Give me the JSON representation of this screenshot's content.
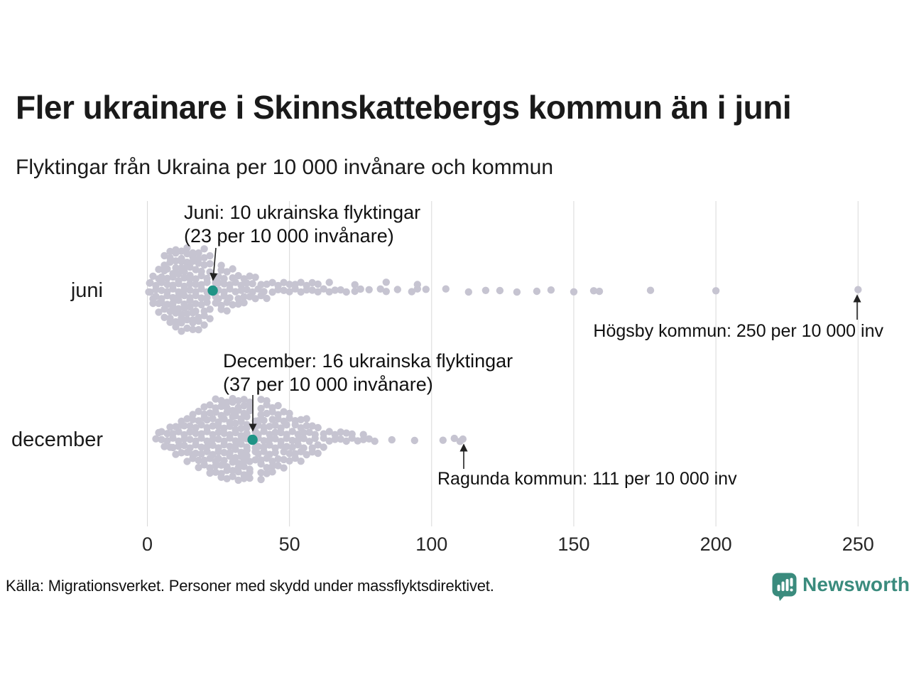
{
  "chart_data": {
    "type": "scatter",
    "variant": "beeswarm",
    "title": "Fler ukrainare i Skinnskattebergs kommun än i juni",
    "subtitle": "Flyktingar från Ukraina per 10 000 invånare och kommun",
    "source": "Källa: Migrationsverket. Personer med skydd under massflyktsdirektivet.",
    "xlabel": "",
    "xlim": [
      0,
      260
    ],
    "x_ticks": [
      0,
      50,
      100,
      150,
      200,
      250
    ],
    "grid": true,
    "legend": "none",
    "colors": {
      "dot": "#c6c4d1",
      "highlight": "#1f9486",
      "gridline": "#d8d8d8",
      "arrow": "#222222"
    },
    "rows": [
      {
        "label": "juni",
        "highlight_value": 23,
        "callout_line1": "Juni: 10 ukrainska flyktingar",
        "callout_line2": "(23 per 10 000 invånare)",
        "outlier_label": "Högsby kommun: 250 per 10 000 inv",
        "outlier_value": 250,
        "value_counts": [
          [
            0.5,
            1
          ],
          [
            0.8,
            1
          ],
          [
            1,
            2
          ],
          [
            2,
            3
          ],
          [
            3,
            3
          ],
          [
            4,
            4
          ],
          [
            5,
            5
          ],
          [
            6,
            5
          ],
          [
            7,
            6
          ],
          [
            8,
            6
          ],
          [
            9,
            7
          ],
          [
            10,
            7
          ],
          [
            11,
            7
          ],
          [
            12,
            8
          ],
          [
            13,
            7
          ],
          [
            14,
            7
          ],
          [
            15,
            8
          ],
          [
            16,
            7
          ],
          [
            17,
            7
          ],
          [
            18,
            6
          ],
          [
            19,
            6
          ],
          [
            20,
            6
          ],
          [
            21,
            5
          ],
          [
            22,
            5
          ],
          [
            24,
            5
          ],
          [
            25,
            4
          ],
          [
            26,
            4
          ],
          [
            27,
            4
          ],
          [
            28,
            3
          ],
          [
            29,
            3
          ],
          [
            30,
            3
          ],
          [
            31,
            2
          ],
          [
            32,
            3
          ],
          [
            33,
            2
          ],
          [
            34,
            3
          ],
          [
            35,
            2
          ],
          [
            36,
            2
          ],
          [
            37,
            2
          ],
          [
            38,
            2
          ],
          [
            39,
            1
          ],
          [
            40,
            2
          ],
          [
            41,
            1
          ],
          [
            42,
            2
          ],
          [
            44,
            2
          ],
          [
            46,
            2
          ],
          [
            48,
            2
          ],
          [
            50,
            2
          ],
          [
            52,
            2
          ],
          [
            54,
            2
          ],
          [
            56,
            2
          ],
          [
            58,
            2
          ],
          [
            60,
            2
          ],
          [
            62,
            1
          ],
          [
            64,
            2
          ],
          [
            66,
            1
          ],
          [
            68,
            1
          ],
          [
            70,
            1
          ],
          [
            73,
            2
          ],
          [
            75,
            1
          ],
          [
            78,
            1
          ],
          [
            82,
            1
          ],
          [
            84,
            2
          ],
          [
            88,
            1
          ],
          [
            93,
            1
          ],
          [
            95,
            2
          ],
          [
            98,
            1
          ],
          [
            105,
            1
          ],
          [
            113,
            1
          ],
          [
            119,
            1
          ],
          [
            124,
            1
          ],
          [
            130,
            1
          ],
          [
            137,
            1
          ],
          [
            142,
            1
          ],
          [
            150,
            1
          ],
          [
            157,
            1
          ],
          [
            159,
            1
          ],
          [
            177,
            1
          ],
          [
            200,
            1
          ],
          [
            250,
            1
          ]
        ]
      },
      {
        "label": "december",
        "highlight_value": 37,
        "callout_line1": "December: 16 ukrainska flyktingar",
        "callout_line2": "(37 per 10 000 invånare)",
        "outlier_label": "Ragunda kommun: 111 per 10 000 inv",
        "outlier_value": 111,
        "value_counts": [
          [
            3,
            1
          ],
          [
            4,
            1
          ],
          [
            5,
            2
          ],
          [
            6,
            1
          ],
          [
            7,
            2
          ],
          [
            8,
            2
          ],
          [
            9,
            3
          ],
          [
            10,
            2
          ],
          [
            11,
            3
          ],
          [
            12,
            3
          ],
          [
            13,
            4
          ],
          [
            14,
            3
          ],
          [
            15,
            4
          ],
          [
            16,
            4
          ],
          [
            17,
            5
          ],
          [
            18,
            4
          ],
          [
            19,
            5
          ],
          [
            20,
            5
          ],
          [
            21,
            6
          ],
          [
            22,
            5
          ],
          [
            23,
            6
          ],
          [
            24,
            6
          ],
          [
            25,
            7
          ],
          [
            26,
            6
          ],
          [
            27,
            7
          ],
          [
            28,
            6
          ],
          [
            29,
            7
          ],
          [
            30,
            7
          ],
          [
            31,
            8
          ],
          [
            32,
            7
          ],
          [
            33,
            8
          ],
          [
            34,
            7
          ],
          [
            35,
            8
          ],
          [
            36,
            7
          ],
          [
            38,
            7
          ],
          [
            39,
            6
          ],
          [
            40,
            7
          ],
          [
            41,
            6
          ],
          [
            42,
            6
          ],
          [
            43,
            5
          ],
          [
            44,
            6
          ],
          [
            45,
            5
          ],
          [
            46,
            5
          ],
          [
            47,
            4
          ],
          [
            48,
            5
          ],
          [
            49,
            4
          ],
          [
            50,
            4
          ],
          [
            51,
            3
          ],
          [
            52,
            4
          ],
          [
            53,
            3
          ],
          [
            54,
            4
          ],
          [
            55,
            3
          ],
          [
            56,
            3
          ],
          [
            57,
            2
          ],
          [
            58,
            3
          ],
          [
            59,
            2
          ],
          [
            60,
            3
          ],
          [
            62,
            3
          ],
          [
            64,
            2
          ],
          [
            66,
            2
          ],
          [
            68,
            2
          ],
          [
            70,
            2
          ],
          [
            72,
            2
          ],
          [
            74,
            1
          ],
          [
            76,
            2
          ],
          [
            78,
            1
          ],
          [
            80,
            1
          ],
          [
            86,
            1
          ],
          [
            94,
            1
          ],
          [
            104,
            1
          ],
          [
            108,
            1
          ],
          [
            110,
            1
          ],
          [
            111,
            1
          ]
        ]
      }
    ]
  },
  "footer": {
    "logo_text": "Newsworthy",
    "logo_color": "#3a8b7d"
  }
}
